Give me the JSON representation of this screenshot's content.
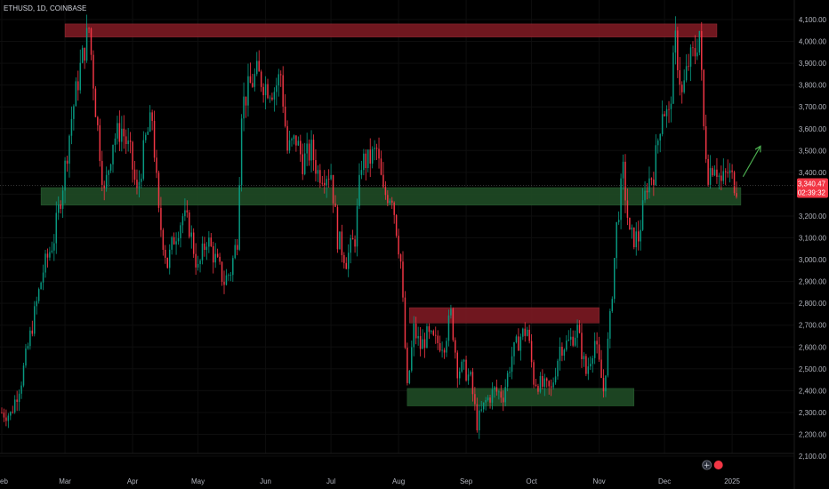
{
  "title": "ETHUSD, 1D, COINBASE",
  "price_label": {
    "price": "3,340.47",
    "countdown": "02:39:32",
    "color": "#f23645"
  },
  "colors": {
    "background": "#000000",
    "grid": "#0e0e0e",
    "up": "#089981",
    "down": "#f23645",
    "resistance_zone": "#7a1a22",
    "support_zone": "#1f4a25",
    "arrow": "#4caf50"
  },
  "chart_data": {
    "type": "candlestick",
    "y_axis": {
      "range": [
        2100,
        4100
      ],
      "ticks": [
        "2,100.00",
        "2,200.00",
        "2,300.00",
        "2,400.00",
        "2,500.00",
        "2,600.00",
        "2,700.00",
        "2,800.00",
        "2,900.00",
        "3,000.00",
        "3,100.00",
        "3,200.00",
        "3,300.00",
        "3,400.00",
        "3,500.00",
        "3,600.00",
        "3,700.00",
        "3,800.00",
        "3,900.00",
        "4,000.00",
        "4,100.00"
      ]
    },
    "x_axis": {
      "range": [
        "2024-02-01",
        "2025-01-03"
      ],
      "ticks": [
        {
          "label": "Feb",
          "date": "2024-02-01"
        },
        {
          "label": "Mar",
          "date": "2024-03-01"
        },
        {
          "label": "Apr",
          "date": "2024-04-01"
        },
        {
          "label": "May",
          "date": "2024-05-01"
        },
        {
          "label": "Jun",
          "date": "2024-06-01"
        },
        {
          "label": "Jul",
          "date": "2024-07-01"
        },
        {
          "label": "Aug",
          "date": "2024-08-01"
        },
        {
          "label": "Sep",
          "date": "2024-09-01"
        },
        {
          "label": "Oct",
          "date": "2024-10-01"
        },
        {
          "label": "Nov",
          "date": "2024-11-01"
        },
        {
          "label": "Dec",
          "date": "2024-12-01"
        },
        {
          "label": "2025",
          "date": "2025-01-01"
        }
      ]
    },
    "price_line": 3340.47,
    "close_path": [
      [
        "2024-02-01",
        2300
      ],
      [
        "2024-02-05",
        2290
      ],
      [
        "2024-02-10",
        2450
      ],
      [
        "2024-02-15",
        2700
      ],
      [
        "2024-02-20",
        2950
      ],
      [
        "2024-02-25",
        3100
      ],
      [
        "2024-02-29",
        3350
      ],
      [
        "2024-03-04",
        3650
      ],
      [
        "2024-03-08",
        3880
      ],
      [
        "2024-03-12",
        4060
      ],
      [
        "2024-03-15",
        3700
      ],
      [
        "2024-03-19",
        3300
      ],
      [
        "2024-03-23",
        3550
      ],
      [
        "2024-03-27",
        3600
      ],
      [
        "2024-03-31",
        3480
      ],
      [
        "2024-04-03",
        3300
      ],
      [
        "2024-04-07",
        3550
      ],
      [
        "2024-04-10",
        3650
      ],
      [
        "2024-04-13",
        3200
      ],
      [
        "2024-04-17",
        2980
      ],
      [
        "2024-04-20",
        3100
      ],
      [
        "2024-04-24",
        3200
      ],
      [
        "2024-04-27",
        3150
      ],
      [
        "2024-05-01",
        2950
      ],
      [
        "2024-05-05",
        3100
      ],
      [
        "2024-05-09",
        3000
      ],
      [
        "2024-05-13",
        2900
      ],
      [
        "2024-05-16",
        2950
      ],
      [
        "2024-05-19",
        3100
      ],
      [
        "2024-05-21",
        3700
      ],
      [
        "2024-05-25",
        3800
      ],
      [
        "2024-05-28",
        3850
      ],
      [
        "2024-06-01",
        3800
      ],
      [
        "2024-06-05",
        3780
      ],
      [
        "2024-06-08",
        3850
      ],
      [
        "2024-06-11",
        3500
      ],
      [
        "2024-06-15",
        3550
      ],
      [
        "2024-06-18",
        3450
      ],
      [
        "2024-06-22",
        3500
      ],
      [
        "2024-06-25",
        3400
      ],
      [
        "2024-06-28",
        3400
      ],
      [
        "2024-07-01",
        3400
      ],
      [
        "2024-07-04",
        3100
      ],
      [
        "2024-07-08",
        3000
      ],
      [
        "2024-07-12",
        3100
      ],
      [
        "2024-07-15",
        3450
      ],
      [
        "2024-07-18",
        3450
      ],
      [
        "2024-07-22",
        3500
      ],
      [
        "2024-07-25",
        3300
      ],
      [
        "2024-07-29",
        3300
      ],
      [
        "2024-08-02",
        2990
      ],
      [
        "2024-08-05",
        2400
      ],
      [
        "2024-08-08",
        2680
      ],
      [
        "2024-08-11",
        2600
      ],
      [
        "2024-08-14",
        2650
      ],
      [
        "2024-08-18",
        2620
      ],
      [
        "2024-08-22",
        2620
      ],
      [
        "2024-08-25",
        2750
      ],
      [
        "2024-08-28",
        2500
      ],
      [
        "2024-08-31",
        2500
      ],
      [
        "2024-09-03",
        2450
      ],
      [
        "2024-09-06",
        2250
      ],
      [
        "2024-09-10",
        2350
      ],
      [
        "2024-09-14",
        2400
      ],
      [
        "2024-09-18",
        2380
      ],
      [
        "2024-09-22",
        2560
      ],
      [
        "2024-09-26",
        2650
      ],
      [
        "2024-09-29",
        2680
      ],
      [
        "2024-10-02",
        2450
      ],
      [
        "2024-10-06",
        2420
      ],
      [
        "2024-10-10",
        2400
      ],
      [
        "2024-10-14",
        2600
      ],
      [
        "2024-10-18",
        2620
      ],
      [
        "2024-10-22",
        2680
      ],
      [
        "2024-10-26",
        2480
      ],
      [
        "2024-10-30",
        2630
      ],
      [
        "2024-11-03",
        2400
      ],
      [
        "2024-11-06",
        2720
      ],
      [
        "2024-11-09",
        3150
      ],
      [
        "2024-11-12",
        3400
      ],
      [
        "2024-11-15",
        3100
      ],
      [
        "2024-11-19",
        3100
      ],
      [
        "2024-11-23",
        3350
      ],
      [
        "2024-11-26",
        3400
      ],
      [
        "2024-11-30",
        3700
      ],
      [
        "2024-12-03",
        3650
      ],
      [
        "2024-12-06",
        4000
      ],
      [
        "2024-12-09",
        3750
      ],
      [
        "2024-12-12",
        3900
      ],
      [
        "2024-12-15",
        3950
      ],
      [
        "2024-12-17",
        4050
      ],
      [
        "2024-12-19",
        3600
      ],
      [
        "2024-12-21",
        3400
      ],
      [
        "2024-12-24",
        3450
      ],
      [
        "2024-12-27",
        3350
      ],
      [
        "2024-12-30",
        3400
      ],
      [
        "2025-01-03",
        3340
      ]
    ],
    "zones": [
      {
        "type": "resistance",
        "from": "2024-03-01",
        "to": "2024-12-25",
        "low": 4020,
        "high": 4080
      },
      {
        "type": "support",
        "from": "2024-02-19",
        "to": "2025-01-05",
        "low": 3250,
        "high": 3330
      },
      {
        "type": "resistance",
        "from": "2024-08-06",
        "to": "2024-11-01",
        "low": 2710,
        "high": 2780
      },
      {
        "type": "support",
        "from": "2024-08-05",
        "to": "2024-11-17",
        "low": 2330,
        "high": 2410
      }
    ],
    "annotations": [
      {
        "type": "arrow",
        "from": [
          "2025-01-06",
          3380
        ],
        "to": [
          "2025-01-14",
          3520
        ]
      }
    ]
  }
}
